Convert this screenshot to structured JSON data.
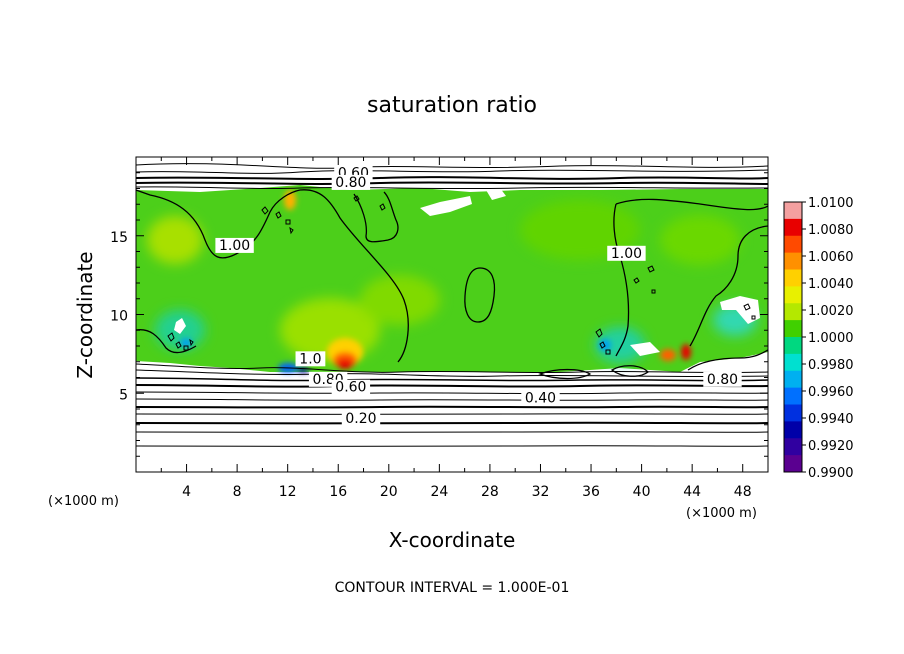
{
  "chart_data": {
    "type": "heatmap",
    "title": "saturation ratio",
    "xlabel": "X-coordinate",
    "ylabel": "Z-coordinate",
    "x_unit": "(×1000 m)",
    "z_unit": "(×1000 m)",
    "xlim": [
      0,
      50
    ],
    "ylim": [
      0,
      20
    ],
    "x_ticks": [
      "4",
      "8",
      "12",
      "16",
      "20",
      "24",
      "28",
      "32",
      "36",
      "40",
      "44",
      "48"
    ],
    "y_ticks": [
      "5",
      "10",
      "15"
    ],
    "contour_interval_text": "CONTOUR INTERVAL = 1.000E-01",
    "contour_labels": [
      {
        "text": "0.60",
        "x": 17.2,
        "z": 18.7
      },
      {
        "text": "0.80",
        "x": 17.0,
        "z": 18.1
      },
      {
        "text": "1.00",
        "x": 7.8,
        "z": 14.1
      },
      {
        "text": "1.00",
        "x": 38.8,
        "z": 13.6
      },
      {
        "text": "1.0",
        "x": 13.8,
        "z": 6.9
      },
      {
        "text": "0.80",
        "x": 15.2,
        "z": 5.6
      },
      {
        "text": "0.60",
        "x": 17.0,
        "z": 5.1
      },
      {
        "text": "0.80",
        "x": 46.4,
        "z": 5.6
      },
      {
        "text": "0.40",
        "x": 32.0,
        "z": 4.4
      },
      {
        "text": "0.20",
        "x": 17.8,
        "z": 3.1
      }
    ],
    "colorbar": {
      "ticks": [
        "1.0100",
        "1.0080",
        "1.0060",
        "1.0040",
        "1.0020",
        "1.0000",
        "0.9980",
        "0.9960",
        "0.9940",
        "0.9920",
        "0.9900"
      ],
      "colors": [
        "#f4a0a0",
        "#e80000",
        "#ff4a00",
        "#ff9000",
        "#ffd000",
        "#e8f000",
        "#b4e800",
        "#40d000",
        "#00d880",
        "#00e0d0",
        "#00b0f0",
        "#0070ff",
        "#0030e0",
        "#0000a8",
        "#3000a0",
        "#5a0090"
      ]
    }
  }
}
